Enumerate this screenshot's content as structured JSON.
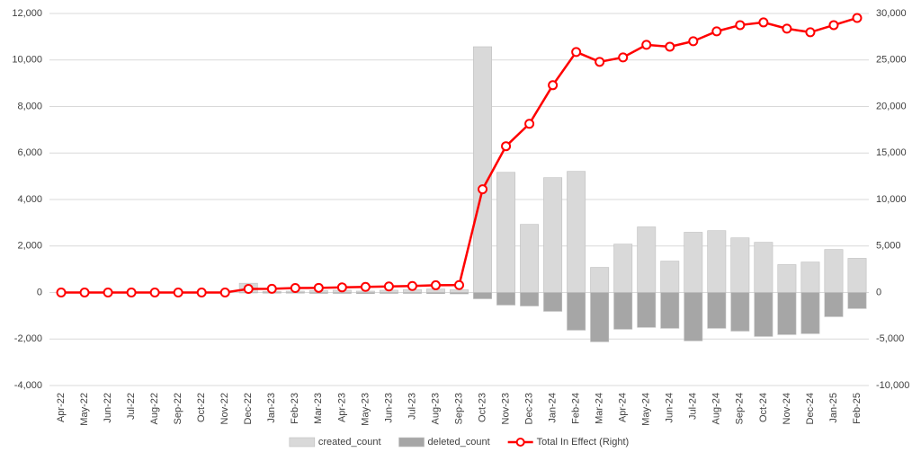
{
  "chart_data": {
    "type": "bar",
    "categories": [
      "Apr-22",
      "May-22",
      "Jun-22",
      "Jul-22",
      "Aug-22",
      "Sep-22",
      "Oct-22",
      "Nov-22",
      "Dec-22",
      "Jan-23",
      "Feb-23",
      "Mar-23",
      "Apr-23",
      "May-23",
      "Jun-23",
      "Jul-23",
      "Aug-23",
      "Sep-23",
      "Oct-23",
      "Nov-23",
      "Dec-23",
      "Jan-24",
      "Feb-24",
      "Mar-24",
      "Apr-24",
      "May-24",
      "Jun-24",
      "Jul-24",
      "Aug-24",
      "Sep-24",
      "Oct-24",
      "Nov-24",
      "Dec-24",
      "Jan-25",
      "Feb-25"
    ],
    "series": [
      {
        "name": "created_count",
        "type": "bar",
        "color": "#d9d9d9",
        "values": [
          0,
          0,
          0,
          0,
          0,
          0,
          0,
          0,
          400,
          50,
          60,
          80,
          100,
          60,
          100,
          120,
          150,
          120,
          10570,
          5170,
          2930,
          4940,
          5210,
          1080,
          2080,
          2820,
          1350,
          2590,
          2660,
          2350,
          2160,
          1200,
          1310,
          1850,
          1470
        ]
      },
      {
        "name": "deleted_count",
        "type": "bar",
        "color": "#a6a6a6",
        "values": [
          0,
          0,
          0,
          0,
          0,
          0,
          0,
          0,
          -20,
          -30,
          -30,
          -40,
          -40,
          -50,
          -40,
          -40,
          -50,
          -60,
          -270,
          -540,
          -580,
          -810,
          -1620,
          -2120,
          -1580,
          -1500,
          -1540,
          -2080,
          -1540,
          -1660,
          -1890,
          -1810,
          -1770,
          -1040,
          -690
        ]
      },
      {
        "name": "Total In Effect (Right)",
        "type": "line",
        "axis": "y2",
        "color": "#ff0000",
        "values": [
          0,
          0,
          0,
          0,
          0,
          0,
          0,
          0,
          390,
          400,
          480,
          500,
          550,
          600,
          650,
          700,
          780,
          800,
          11100,
          15730,
          18140,
          22290,
          25860,
          24800,
          25280,
          26630,
          26430,
          27020,
          28080,
          28750,
          29040,
          28370,
          27980,
          28750,
          29520
        ]
      }
    ],
    "ylim": [
      -4000,
      12000
    ],
    "yticks": [
      {
        "value": -4000,
        "label": "-4,000"
      },
      {
        "value": -2000,
        "label": "-2,000"
      },
      0,
      {
        "value": 2000,
        "label": "2,000"
      },
      {
        "value": 4000,
        "label": "4,000"
      },
      {
        "value": 6000,
        "label": "6,000"
      },
      {
        "value": 8000,
        "label": "8,000"
      },
      {
        "value": 10000,
        "label": "10,000"
      },
      {
        "value": 12000,
        "label": "12,000"
      }
    ],
    "y2lim": [
      -10000,
      30000
    ],
    "y2ticks": [
      {
        "value": -10000,
        "label": "-10,000"
      },
      {
        "value": -5000,
        "label": "-5,000"
      },
      0,
      {
        "value": 5000,
        "label": "5,000"
      },
      {
        "value": 10000,
        "label": "10,000"
      },
      {
        "value": 15000,
        "label": "15,000"
      },
      {
        "value": 20000,
        "label": "20,000"
      },
      {
        "value": 25000,
        "label": "25,000"
      },
      {
        "value": 30000,
        "label": "30,000"
      }
    ],
    "grid": true,
    "legend": "bottom"
  }
}
